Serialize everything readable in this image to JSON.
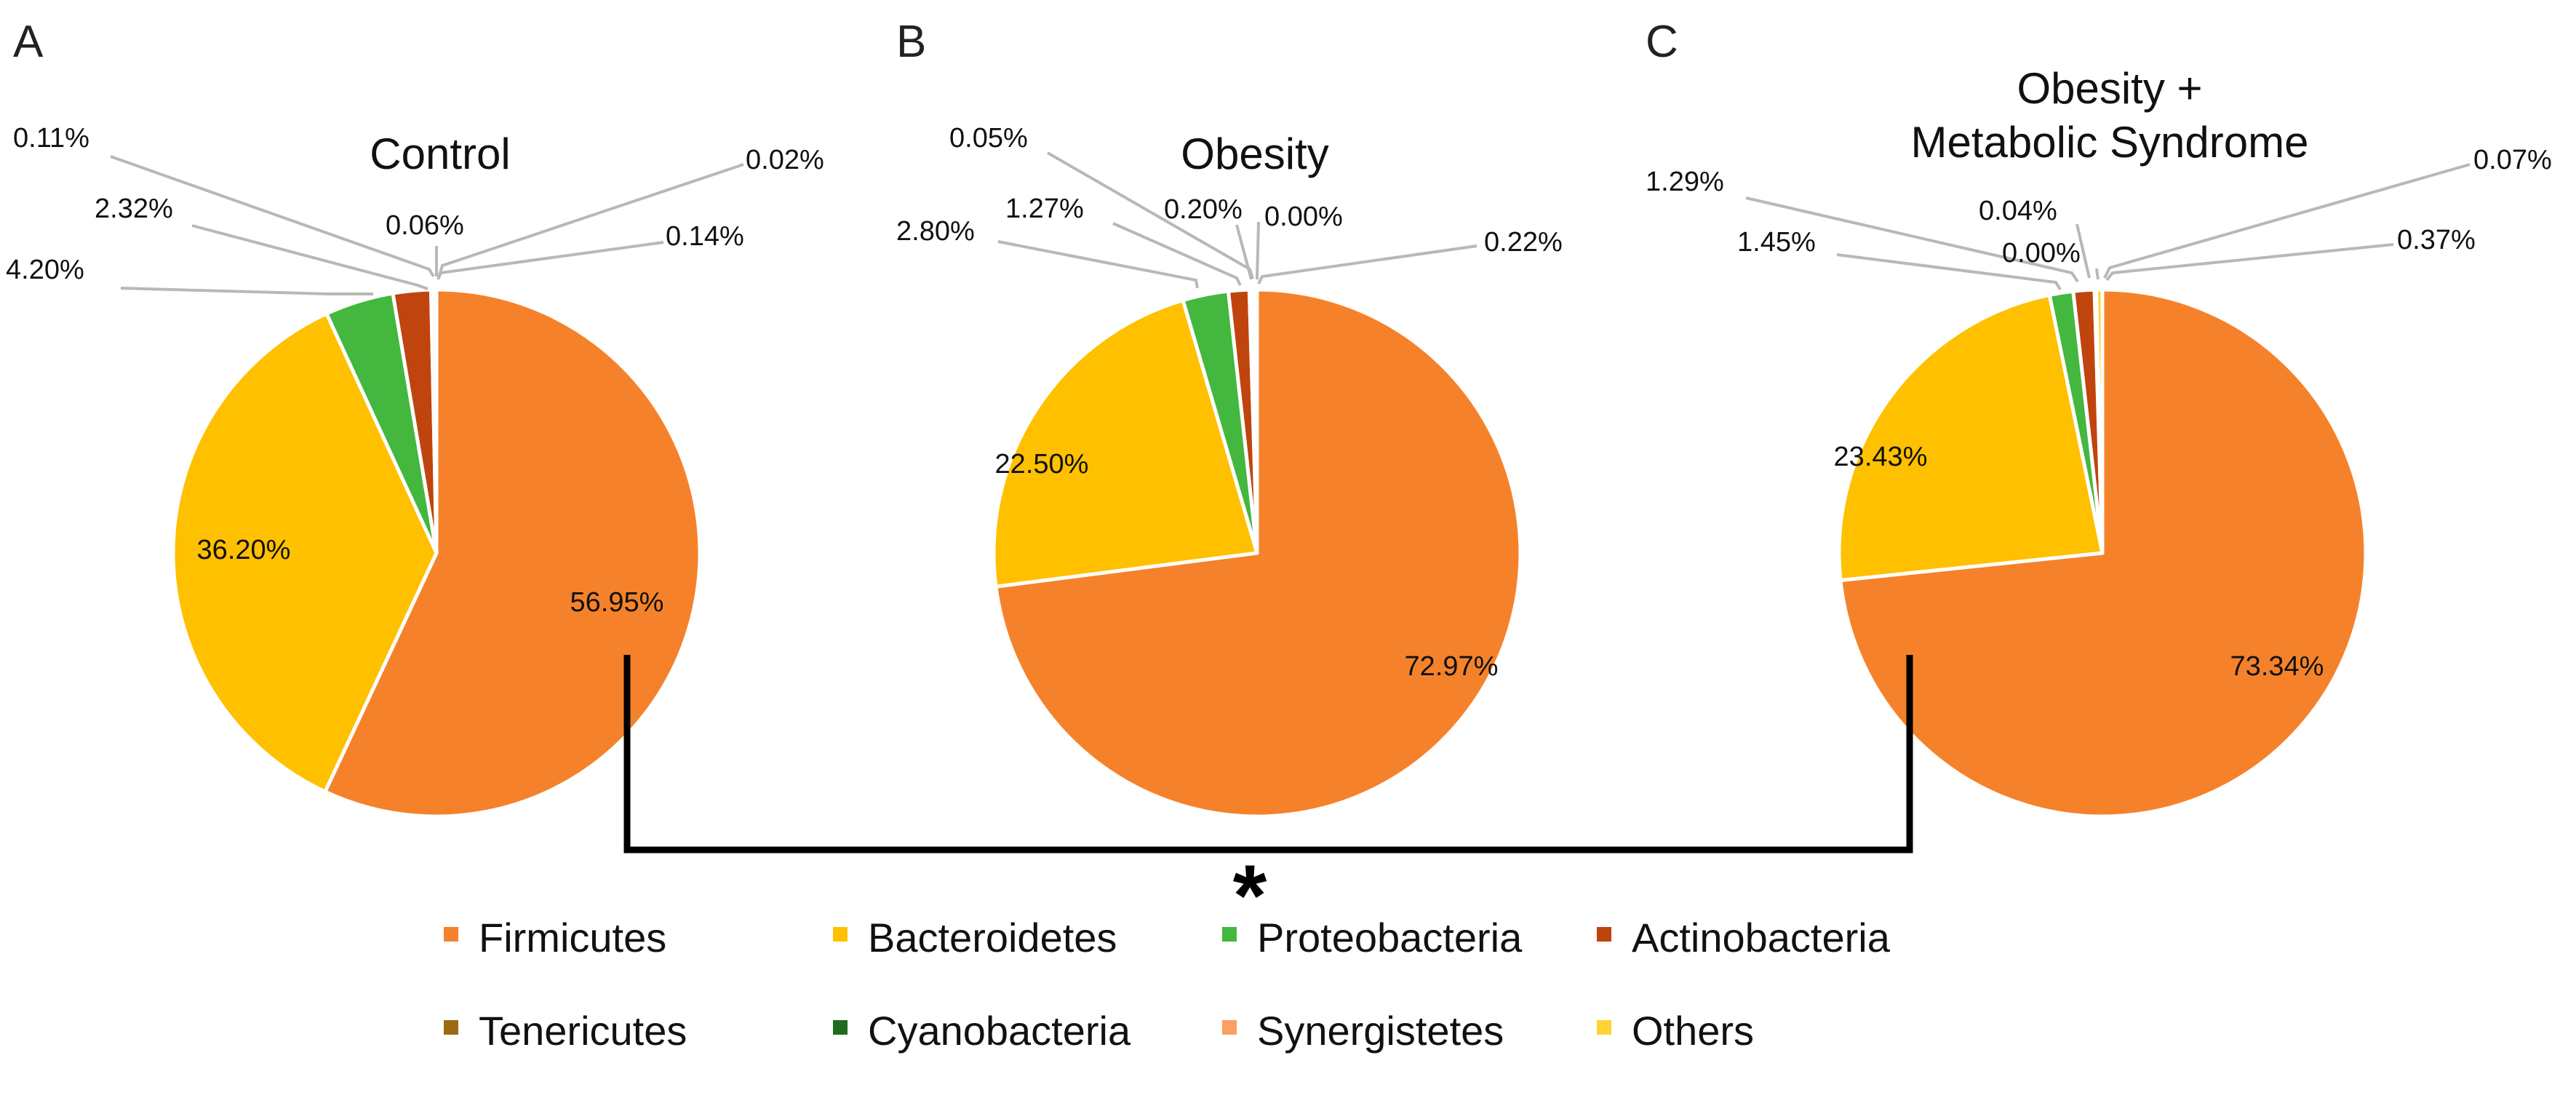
{
  "figure": {
    "significance": "*"
  },
  "chart_data": [
    {
      "type": "pie",
      "panel": "A",
      "title_lines": [
        "Control"
      ],
      "slices": [
        {
          "name": "Firmicutes",
          "label": "56.95%",
          "color": "#F5822B",
          "value": 56.95
        },
        {
          "name": "Bacteroidetes",
          "label": "36.20%",
          "color": "#FFC000",
          "value": 36.2
        },
        {
          "name": "Proteobacteria",
          "label": "4.20%",
          "color": "#43B73E",
          "value": 4.2
        },
        {
          "name": "Actinobacteria",
          "label": "2.32%",
          "color": "#C0440D",
          "value": 2.32
        },
        {
          "name": "Tenericutes",
          "label": "0.11%",
          "color": "#9A6B12",
          "value": 0.11
        },
        {
          "name": "Cyanobacteria",
          "label": "0.06%",
          "color": "#1F6B1F",
          "value": 0.06
        },
        {
          "name": "Synergistetes",
          "label": "0.02%",
          "color": "#F9A062",
          "value": 0.02
        },
        {
          "name": "Others",
          "label": "0.14%",
          "color": "#FFD333",
          "value": 0.14
        }
      ]
    },
    {
      "type": "pie",
      "panel": "B",
      "title_lines": [
        "Obesity"
      ],
      "slices": [
        {
          "name": "Firmicutes",
          "label": "72.97%",
          "color": "#F5822B",
          "value": 72.97
        },
        {
          "name": "Bacteroidetes",
          "label": "22.50%",
          "color": "#FFC000",
          "value": 22.5
        },
        {
          "name": "Proteobacteria",
          "label": "2.80%",
          "color": "#43B73E",
          "value": 2.8
        },
        {
          "name": "Actinobacteria",
          "label": "1.27%",
          "color": "#C0440D",
          "value": 1.27
        },
        {
          "name": "Tenericutes",
          "label": "0.05%",
          "color": "#9A6B12",
          "value": 0.05
        },
        {
          "name": "Cyanobacteria",
          "label": "0.20%",
          "color": "#1F6B1F",
          "value": 0.2
        },
        {
          "name": "Synergistetes",
          "label": "0.00%",
          "color": "#F9A062",
          "value": 0.0
        },
        {
          "name": "Others",
          "label": "0.22%",
          "color": "#FFD333",
          "value": 0.22
        }
      ]
    },
    {
      "type": "pie",
      "panel": "C",
      "title_lines": [
        "Obesity +",
        "Metabolic Syndrome"
      ],
      "slices": [
        {
          "name": "Firmicutes",
          "label": "73.34%",
          "color": "#F5822B",
          "value": 73.34
        },
        {
          "name": "Bacteroidetes",
          "label": "23.43%",
          "color": "#FFC000",
          "value": 23.43
        },
        {
          "name": "Proteobacteria",
          "label": "1.45%",
          "color": "#43B73E",
          "value": 1.45
        },
        {
          "name": "Actinobacteria",
          "label": "1.29%",
          "color": "#C0440D",
          "value": 1.29
        },
        {
          "name": "Tenericutes",
          "label": "0.04%",
          "color": "#9A6B12",
          "value": 0.04
        },
        {
          "name": "Cyanobacteria",
          "label": "0.00%",
          "color": "#1F6B1F",
          "value": 0.0
        },
        {
          "name": "Synergistetes",
          "label": "0.07%",
          "color": "#F9A062",
          "value": 0.07
        },
        {
          "name": "Others",
          "label": "0.37%",
          "color": "#FFD333",
          "value": 0.37
        }
      ]
    }
  ],
  "legend": {
    "items": [
      {
        "name": "Firmicutes",
        "color": "#F5822B"
      },
      {
        "name": "Bacteroidetes",
        "color": "#FFC000"
      },
      {
        "name": "Proteobacteria",
        "color": "#43B73E"
      },
      {
        "name": "Actinobacteria",
        "color": "#C0440D"
      },
      {
        "name": "Tenericutes",
        "color": "#9A6B12"
      },
      {
        "name": "Cyanobacteria",
        "color": "#1F6B1F"
      },
      {
        "name": "Synergistetes",
        "color": "#F9A062"
      },
      {
        "name": "Others",
        "color": "#FFD333"
      }
    ]
  }
}
